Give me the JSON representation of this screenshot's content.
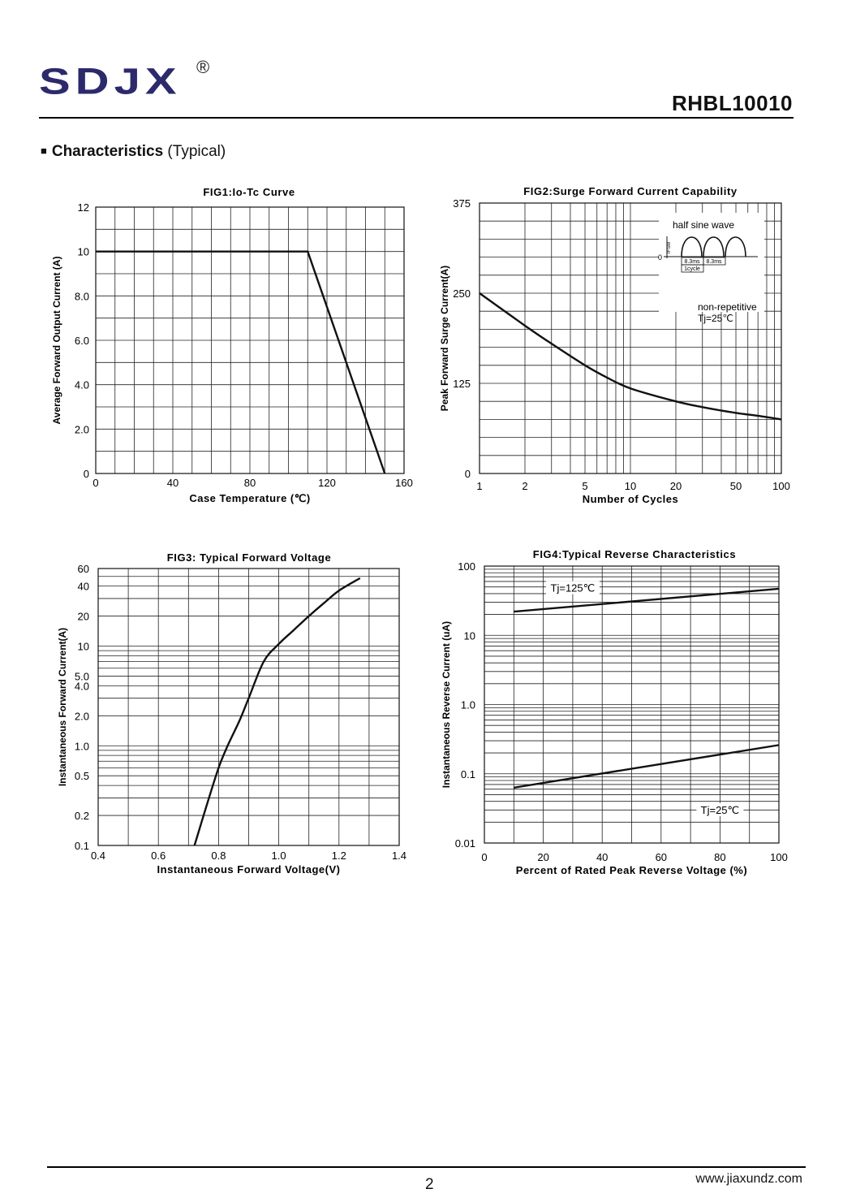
{
  "header": {
    "logo_text": "SDJX",
    "registered_mark": "®",
    "part_number": "RHBL10010",
    "brand_color": "#2c2a6b"
  },
  "section": {
    "bullet": "■",
    "title_bold": "Characteristics",
    "title_rest": " (Typical)"
  },
  "footer": {
    "page_number": "2",
    "website": "www.jiaxundz.com"
  },
  "chart_data": [
    {
      "id": "fig1",
      "type": "line",
      "title": "FIG1:Io-Tc Curve",
      "xlabel": "Case Temperature (℃)",
      "ylabel": "Average Forward Output Current (A)",
      "xlim": [
        0,
        160
      ],
      "ylim": [
        0,
        12
      ],
      "x_ticks": [
        "0",
        "40",
        "80",
        "120",
        "160"
      ],
      "y_ticks": [
        "0",
        "2.0",
        "4.0",
        "6.0",
        "8.0",
        "10",
        "12"
      ],
      "series": [
        {
          "x": [
            0,
            110,
            150
          ],
          "y": [
            10,
            10,
            0
          ]
        }
      ],
      "grid": true
    },
    {
      "id": "fig2",
      "type": "line",
      "title": "FIG2:Surge Forward Current Capability",
      "xlabel": "Number of Cycles",
      "ylabel": "Peak Forward Surge Current(A)",
      "x_scale": "log",
      "xlim": [
        1,
        100
      ],
      "ylim": [
        0,
        375
      ],
      "x_ticks": [
        "1",
        "2",
        "5",
        "10",
        "20",
        "50",
        "100"
      ],
      "y_ticks": [
        "0",
        "125",
        "250",
        "375"
      ],
      "series": [
        {
          "x": [
            1,
            2,
            3,
            5,
            7,
            10,
            20,
            30,
            50,
            70,
            100
          ],
          "y": [
            250,
            205,
            180,
            150,
            133,
            118,
            100,
            92,
            84,
            80,
            75
          ]
        }
      ],
      "annotations": [
        "half sine wave",
        "IFSM",
        "0",
        "8.3ms",
        "8.3ms",
        "1cycle",
        "non-repetitive",
        "Tj=25℃"
      ],
      "grid": true
    },
    {
      "id": "fig3",
      "type": "line",
      "title": "FIG3: Typical Forward Voltage",
      "xlabel": "Instantaneous Forward Voltage(V)",
      "ylabel": "Instantaneous Forward Current(A)",
      "y_scale": "log",
      "xlim": [
        0.4,
        1.4
      ],
      "ylim": [
        0.1,
        60
      ],
      "x_ticks": [
        "0.4",
        "0.6",
        "0.8",
        "1.0",
        "1.2",
        "1.4"
      ],
      "y_ticks": [
        "0.1",
        "0.2",
        "0.5",
        "1.0",
        "2.0",
        "4.0",
        "5.0",
        "10",
        "20",
        "40",
        "60"
      ],
      "series": [
        {
          "x": [
            0.72,
            0.76,
            0.8,
            0.83,
            0.87,
            0.9,
            0.95,
            1.0,
            1.05,
            1.1,
            1.15,
            1.2,
            1.27
          ],
          "y": [
            0.1,
            0.25,
            0.6,
            1.0,
            1.8,
            3.0,
            7.0,
            10.5,
            14.5,
            20,
            27,
            36,
            48
          ]
        }
      ],
      "grid": true
    },
    {
      "id": "fig4",
      "type": "line",
      "title": "FIG4:Typical Reverse Characteristics",
      "xlabel": "Percent of Rated Peak Reverse Voltage  (%)",
      "ylabel": "Instantaneous Reverse Current (uA)",
      "y_scale": "log",
      "xlim": [
        0,
        100
      ],
      "ylim": [
        0.01,
        100
      ],
      "x_ticks": [
        "0",
        "20",
        "40",
        "60",
        "80",
        "100"
      ],
      "y_ticks": [
        "0.01",
        "0.1",
        "1.0",
        "10",
        "100"
      ],
      "series": [
        {
          "name": "Tj=125℃",
          "x": [
            10,
            100
          ],
          "y": [
            22,
            47
          ]
        },
        {
          "name": "Tj=25℃",
          "x": [
            10,
            100
          ],
          "y": [
            0.063,
            0.26
          ]
        }
      ],
      "grid": true
    }
  ]
}
